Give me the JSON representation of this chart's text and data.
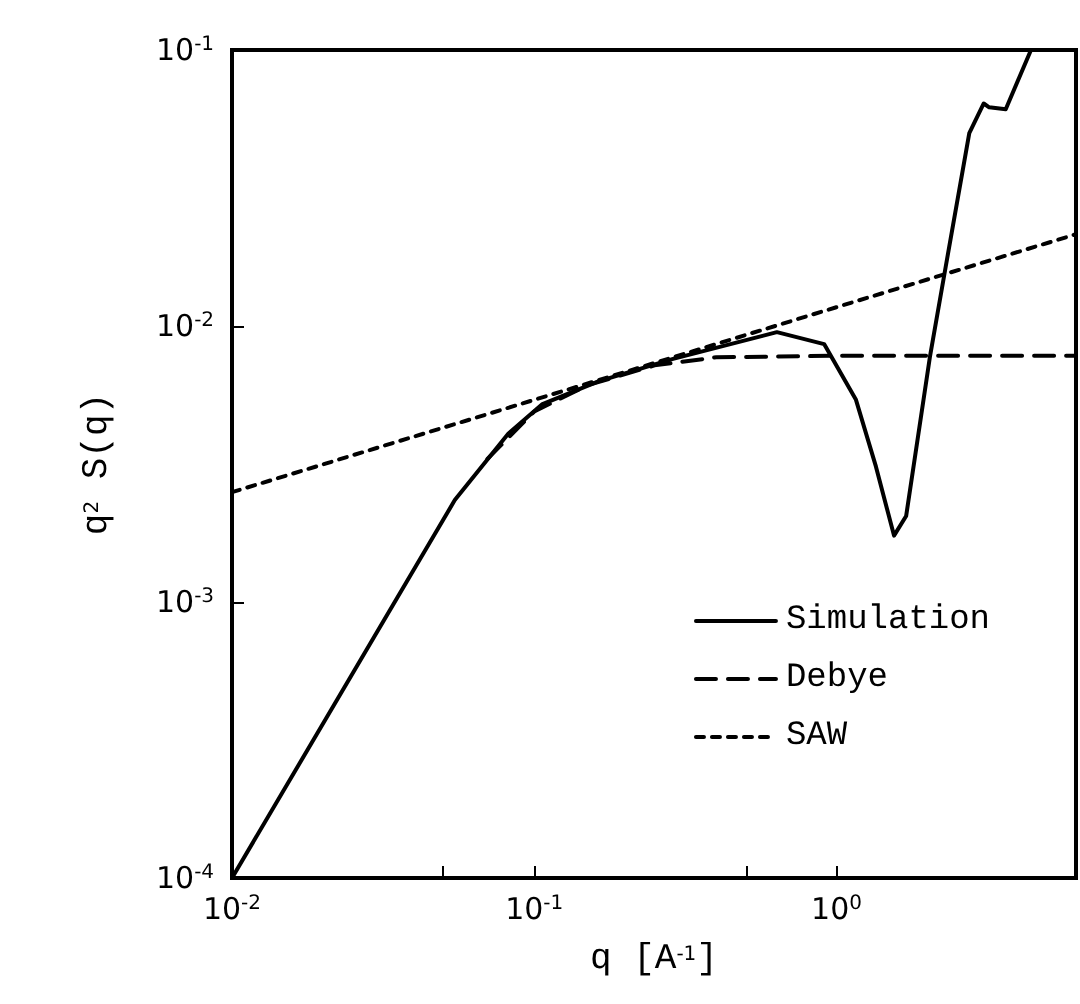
{
  "chart_data": {
    "type": "line",
    "xlabel": "q [A$^{-1}$]",
    "ylabel": "q$^{2}$ S(q)",
    "log": "xy",
    "grid": false,
    "legend": "bottom right",
    "marker": "none",
    "xlim": [
      0.01,
      6.2
    ],
    "ylim": [
      0.0001,
      0.1
    ],
    "xticks": [
      {
        "value": 0.01,
        "label": "10$^{-2}$"
      },
      {
        "value": 0.05,
        "label": null
      },
      {
        "value": 0.1,
        "label": "10$^{-1}$"
      },
      {
        "value": 0.5,
        "label": null
      },
      {
        "value": 1,
        "label": "10$^{0}$"
      }
    ],
    "yticks": [
      {
        "value": 0.0001,
        "label": "10$^{-4}$"
      },
      {
        "value": 0.001,
        "label": "10$^{-3}$"
      },
      {
        "value": 0.01,
        "label": "10$^{-2}$"
      },
      {
        "value": 0.1,
        "label": "10$^{-1}$"
      }
    ],
    "series": [
      {
        "name": "Simulation",
        "color": "#000000",
        "line_style": "solid",
        "x": [
          0.01,
          0.026,
          0.0546,
          0.082,
          0.106,
          0.163,
          0.288,
          0.635,
          0.91,
          1.16,
          1.35,
          1.55,
          1.7,
          2.04,
          2.3,
          2.75,
          3.07,
          3.2,
          3.63,
          4.4
        ],
        "values": [
          0.0001,
          0.00059,
          0.00234,
          0.00407,
          0.0052,
          0.0063,
          0.0076,
          0.0095,
          0.0086,
          0.0054,
          0.0031,
          0.00174,
          0.00205,
          0.0078,
          0.0165,
          0.05,
          0.064,
          0.062,
          0.061,
          0.1
        ]
      },
      {
        "name": "Debye",
        "color": "#000000",
        "line_style": "dashed",
        "x": [
          0.07,
          0.1,
          0.15,
          0.25,
          0.4,
          1,
          6.2
        ],
        "values": [
          0.0033,
          0.0049,
          0.0061,
          0.0072,
          0.0077,
          0.0078,
          0.0078
        ]
      },
      {
        "name": "SAW",
        "color": "#000000",
        "line_style": "dotted",
        "x": [
          0.01,
          0.1,
          1,
          6.2
        ],
        "values": [
          0.0025,
          0.0054,
          0.0117,
          0.0215
        ]
      }
    ]
  }
}
